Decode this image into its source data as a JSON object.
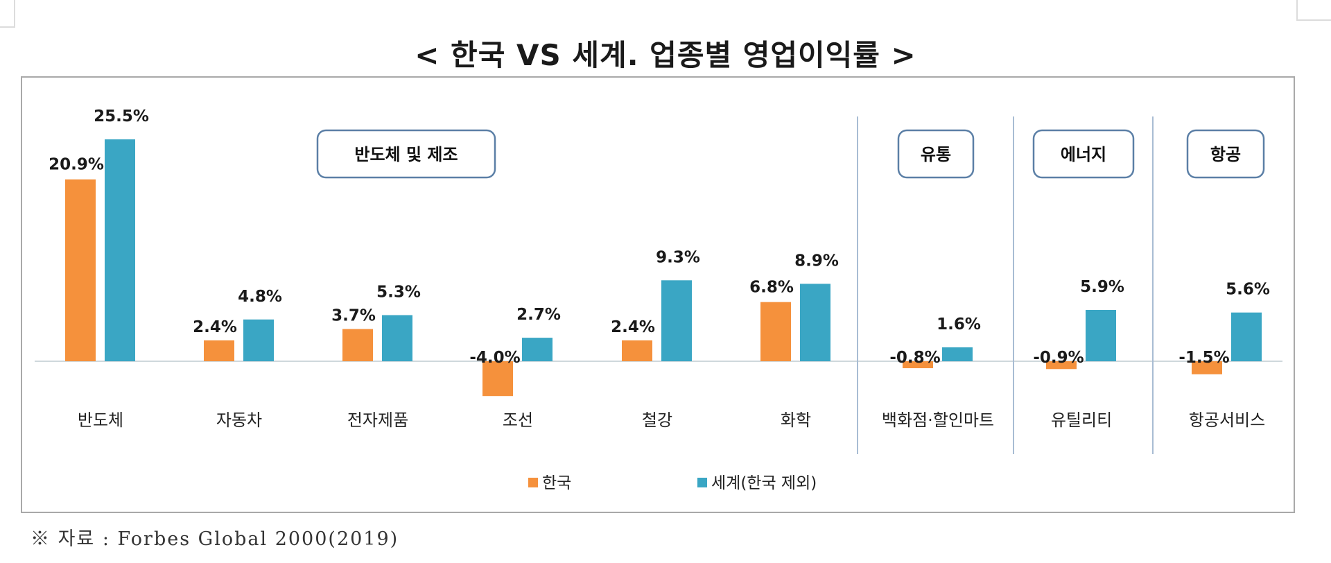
{
  "title": "< 한국 VS 세계. 업종별 영업이익률 >",
  "source": "※ 자료 : Forbes Global 2000(2019)",
  "colors": {
    "korea": "#f5913c",
    "world": "#3aa6c4",
    "zero_line": "#cfd8dc",
    "group_border": "#5b7fa6",
    "divider": "#a8bcd3"
  },
  "chart_data": {
    "type": "bar",
    "title": "< 한국 VS 세계. 업종별 영업이익률 >",
    "categories": [
      "반도체",
      "자동차",
      "전자제품",
      "조선",
      "철강",
      "화학",
      "백화점·할인마트",
      "유틸리티",
      "항공서비스"
    ],
    "series": [
      {
        "name": "한국",
        "values": [
          20.9,
          2.4,
          3.7,
          -4.0,
          2.4,
          6.8,
          -0.8,
          -0.9,
          -1.5
        ],
        "labels": [
          "20.9%",
          "2.4%",
          "3.7%",
          "-4.0%",
          "2.4%",
          "6.8%",
          "-0.8%",
          "-0.9%",
          "-1.5%"
        ]
      },
      {
        "name": "세계(한국 제외)",
        "values": [
          25.5,
          4.8,
          5.3,
          2.7,
          9.3,
          8.9,
          1.6,
          5.9,
          5.6
        ],
        "labels": [
          "25.5%",
          "4.8%",
          "5.3%",
          "2.7%",
          "9.3%",
          "8.9%",
          "1.6%",
          "5.9%",
          "5.6%"
        ]
      }
    ],
    "groups": [
      {
        "label": "반도체 및 제조",
        "categories": [
          "반도체",
          "자동차",
          "전자제품",
          "조선",
          "철강",
          "화학"
        ]
      },
      {
        "label": "유통",
        "categories": [
          "백화점·할인마트"
        ]
      },
      {
        "label": "에너지",
        "categories": [
          "유틸리티"
        ]
      },
      {
        "label": "항공",
        "categories": [
          "항공서비스"
        ]
      }
    ],
    "legend_position": "bottom",
    "grid": false,
    "ylim": [
      -5,
      27
    ]
  }
}
